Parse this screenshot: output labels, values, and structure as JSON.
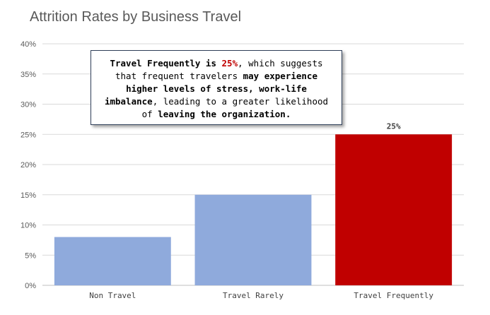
{
  "chart_data": {
    "type": "bar",
    "title": "Attrition Rates by Business Travel",
    "categories": [
      "Non Travel",
      "Travel Rarely",
      "Travel Frequently"
    ],
    "values": [
      8,
      15,
      25
    ],
    "value_unit": "%",
    "ylim": [
      0,
      40
    ],
    "yticks": [
      "0%",
      "5%",
      "10%",
      "15%",
      "20%",
      "25%",
      "30%",
      "35%",
      "40%"
    ],
    "bar_colors": [
      "#8faadc",
      "#8faadc",
      "#c00000"
    ],
    "data_labels": [
      null,
      null,
      "25%"
    ],
    "grid": true,
    "legend": "none",
    "xlabel": "",
    "ylabel": ""
  },
  "callout": {
    "segments": [
      {
        "text": "Travel Frequently is ",
        "style": "bold"
      },
      {
        "text": "25%",
        "style": "highlight"
      },
      {
        "text": ", which suggests that frequent travelers ",
        "style": "normal"
      },
      {
        "text": "may experience higher levels of stress, work-life imbalance",
        "style": "bold"
      },
      {
        "text": ", leading to a greater likelihood of ",
        "style": "normal"
      },
      {
        "text": "leaving the organization.",
        "style": "bold"
      }
    ]
  },
  "colors": {
    "default_bar": "#8faadc",
    "highlight_bar": "#c00000",
    "highlight_text": "#c00000",
    "gridline": "#d9d9d9",
    "text": "#595959"
  }
}
